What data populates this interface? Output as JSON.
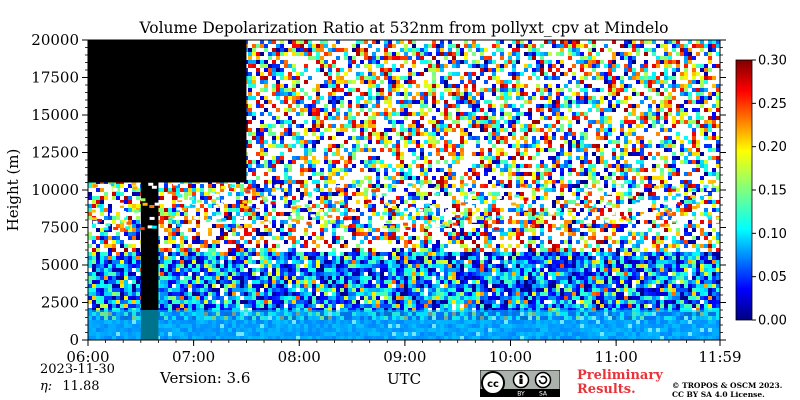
{
  "chart_data": {
    "type": "heatmap",
    "title": "Volume Depolarization Ratio at 532nm from pollyxt_cpv at Mindelo",
    "ylabel": "Height (m)",
    "xlabel": "UTC",
    "x_ticks": [
      "06:00",
      "07:00",
      "08:00",
      "09:00",
      "10:00",
      "11:00",
      "11:59"
    ],
    "y_ticks": [
      "0",
      "2500",
      "5000",
      "7500",
      "10000",
      "12500",
      "15000",
      "17500",
      "20000"
    ],
    "xlim": [
      "06:00",
      "11:59"
    ],
    "ylim": [
      0,
      20000
    ],
    "colorbar": {
      "ticks": [
        "0.00",
        "0.05",
        "0.10",
        "0.15",
        "0.20",
        "0.25",
        "0.30"
      ],
      "range": [
        0,
        0.3
      ],
      "colormap": "jet"
    },
    "features": [
      {
        "kind": "no-data",
        "from": "06:00",
        "to": "07:30",
        "height_from": 10500,
        "height_to": 20000
      },
      {
        "kind": "no-data",
        "from": "06:30",
        "to": "06:40",
        "height_from": 0,
        "height_to": 20000
      },
      {
        "kind": "cirrus-layer",
        "from": "06:00",
        "to": "11:59",
        "height_from": 7500,
        "height_to": 10500
      },
      {
        "kind": "boundary-layer",
        "from": "06:00",
        "to": "11:59",
        "height_from": 0,
        "height_to": 2000
      }
    ]
  },
  "footer": {
    "date": "2023-11-30",
    "eta_label": "η:",
    "eta_value": "11.88",
    "version": "Version: 3.6",
    "preliminary": "Preliminary\nResults.",
    "copyright": "© TROPOS & OSCM 2023.\nCC BY SA 4.0 License.",
    "cc_labels": [
      "BY",
      "SA"
    ]
  },
  "colors": {
    "no_data": "#000000",
    "accent_red": "#e8333a"
  }
}
